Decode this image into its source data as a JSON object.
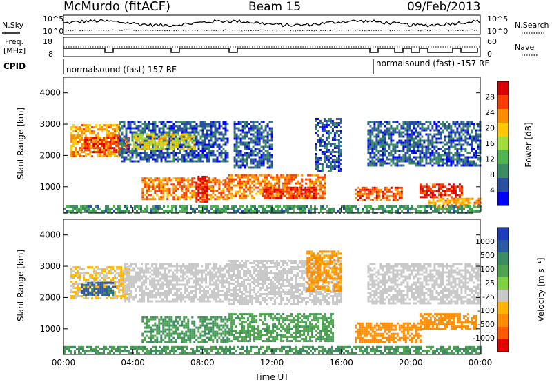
{
  "header": {
    "station": "McMurdo (fitACF)",
    "beam": "Beam 15",
    "date": "09/Feb/2013"
  },
  "top_panels": {
    "nsky_label": "N.Sky",
    "nsky_ticks": [
      "10^5",
      "10^0"
    ],
    "nsearch_label": "N.Search",
    "nsearch_ticks": [
      "10^5",
      "10^0"
    ],
    "freq_label_line1": "Freq.",
    "freq_label_line2": "[MHz]",
    "freq_ticks": [
      "18",
      "8"
    ],
    "nave_label": "Nave",
    "nave_ticks": [
      "60",
      "0"
    ],
    "cpid_label": "CPID",
    "cpid_segments": [
      "normalsound (fast) 157 RF",
      "normalsound (fast) -157 RF"
    ]
  },
  "colors": {
    "power_scale": [
      "#0000ff",
      "#2a50a0",
      "#3c8c64",
      "#50b450",
      "#a0dc3c",
      "#ffc800",
      "#ff8c00",
      "#ff3c00",
      "#dc0000"
    ],
    "velocity_scale": [
      "#1e3cbe",
      "#2a5aa8",
      "#3c8c64",
      "#4fa54f",
      "#7ed140",
      "#c8c8c8",
      "#ffb400",
      "#ff8c00",
      "#ff5a00",
      "#e60000"
    ]
  },
  "chart_data": [
    {
      "type": "heatmap",
      "title": "",
      "ylabel": "Slant Range [km]",
      "yticks": [
        "1000",
        "2000",
        "3000",
        "4000"
      ],
      "ylim": [
        180,
        4500
      ],
      "xlim": [
        "00:00",
        "24:00"
      ],
      "colorbar": {
        "label": "Power [dB]",
        "ticks": [
          "4",
          "8",
          "12",
          "16",
          "20",
          "24",
          "28"
        ],
        "range": [
          0,
          32
        ]
      },
      "bands": [
        {
          "t0": 0.4,
          "t1": 3.2,
          "r0": 2000,
          "r1": 3000,
          "level": 22
        },
        {
          "t0": 1.2,
          "t1": 3.8,
          "r0": 2100,
          "r1": 2600,
          "level": 28
        },
        {
          "t0": 3.2,
          "t1": 9.5,
          "r0": 1800,
          "r1": 3100,
          "level": 6
        },
        {
          "t0": 4.0,
          "t1": 7.5,
          "r0": 2200,
          "r1": 2700,
          "level": 18
        },
        {
          "t0": 4.5,
          "t1": 9.5,
          "r0": 600,
          "r1": 1300,
          "level": 24
        },
        {
          "t0": 7.6,
          "t1": 8.2,
          "r0": 550,
          "r1": 1350,
          "level": 30
        },
        {
          "t0": 9.8,
          "t1": 12.0,
          "r0": 1600,
          "r1": 3100,
          "level": 6
        },
        {
          "t0": 9.5,
          "t1": 15.0,
          "r0": 650,
          "r1": 1400,
          "level": 24
        },
        {
          "t0": 11.5,
          "t1": 14.5,
          "r0": 650,
          "r1": 1000,
          "level": 28
        },
        {
          "t0": 14.5,
          "t1": 16.0,
          "r0": 1500,
          "r1": 3200,
          "level": 6
        },
        {
          "t0": 16.8,
          "t1": 19.5,
          "r0": 600,
          "r1": 1000,
          "level": 26
        },
        {
          "t0": 17.5,
          "t1": 24.0,
          "r0": 1700,
          "r1": 3100,
          "level": 6
        },
        {
          "t0": 20.5,
          "t1": 23.0,
          "r0": 700,
          "r1": 1100,
          "level": 28
        },
        {
          "t0": 21.0,
          "t1": 24.0,
          "r0": 350,
          "r1": 650,
          "level": 22
        },
        {
          "t0": 0.0,
          "t1": 24.0,
          "r0": 200,
          "r1": 400,
          "level": 10
        }
      ]
    },
    {
      "type": "heatmap",
      "title": "",
      "ylabel": "Slant Range [km]",
      "xlabel": "Time UT",
      "yticks": [
        "1000",
        "2000",
        "3000",
        "4000"
      ],
      "xticks": [
        "00:00",
        "04:00",
        "08:00",
        "12:00",
        "16:00",
        "20:00",
        "00:00"
      ],
      "ylim": [
        180,
        4500
      ],
      "xlim": [
        "00:00",
        "24:00"
      ],
      "colorbar": {
        "label": "Velocity [m s⁻¹]",
        "ticks": [
          "1000",
          "500",
          "100",
          "25",
          "-25",
          "-100",
          "-500",
          "-1000"
        ]
      },
      "bands": [
        {
          "t0": 0.4,
          "t1": 3.8,
          "r0": 2000,
          "r1": 3000,
          "level": -30
        },
        {
          "t0": 1.0,
          "t1": 3.0,
          "r0": 2100,
          "r1": 2500,
          "level": 600
        },
        {
          "t0": 3.5,
          "t1": 9.5,
          "r0": 1900,
          "r1": 3100,
          "level": 0
        },
        {
          "t0": 4.5,
          "t1": 9.5,
          "r0": 600,
          "r1": 1400,
          "level": 300
        },
        {
          "t0": 9.5,
          "t1": 16.0,
          "r0": 1800,
          "r1": 3200,
          "level": 0
        },
        {
          "t0": 9.5,
          "t1": 15.5,
          "r0": 600,
          "r1": 1500,
          "level": 250
        },
        {
          "t0": 14.0,
          "t1": 16.0,
          "r0": 2200,
          "r1": 3500,
          "level": -120
        },
        {
          "t0": 16.8,
          "t1": 20.5,
          "r0": 600,
          "r1": 1200,
          "level": -150
        },
        {
          "t0": 17.5,
          "t1": 24.0,
          "r0": 1800,
          "r1": 3100,
          "level": 0
        },
        {
          "t0": 20.5,
          "t1": 23.8,
          "r0": 1000,
          "r1": 1500,
          "level": -200
        },
        {
          "t0": 0.0,
          "t1": 24.0,
          "r0": 200,
          "r1": 450,
          "level": 300
        }
      ]
    }
  ]
}
